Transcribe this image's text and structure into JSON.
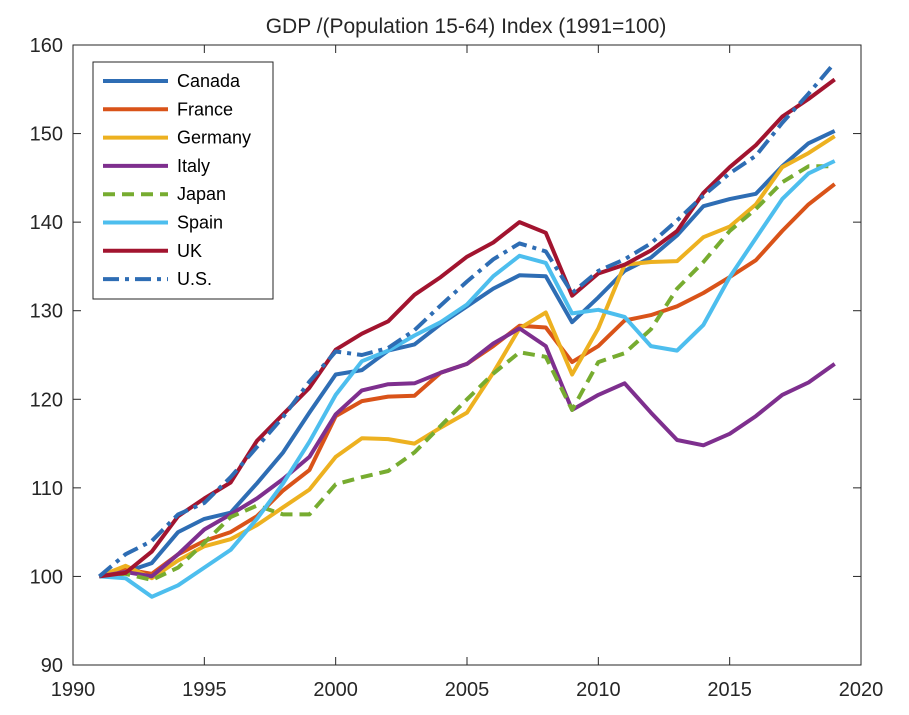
{
  "chart_data": {
    "type": "line",
    "title": "GDP /(Population 15-64) Index  (1991=100)",
    "xlabel": "",
    "ylabel": "",
    "xlim": [
      1990,
      2020
    ],
    "ylim": [
      90,
      160
    ],
    "xticks": [
      1990,
      1995,
      2000,
      2005,
      2010,
      2015,
      2020
    ],
    "yticks": [
      90,
      100,
      110,
      120,
      130,
      140,
      150,
      160
    ],
    "grid": false,
    "legend_position": "top-left",
    "x": [
      1991,
      1992,
      1993,
      1994,
      1995,
      1996,
      1997,
      1998,
      1999,
      2000,
      2001,
      2002,
      2003,
      2004,
      2005,
      2006,
      2007,
      2008,
      2009,
      2010,
      2011,
      2012,
      2013,
      2014,
      2015,
      2016,
      2017,
      2018,
      2019
    ],
    "series": [
      {
        "name": "Canada",
        "color": "#2E6DB4",
        "dash": "solid",
        "values": [
          100,
          100.5,
          101.5,
          105,
          106.5,
          107.2,
          110.5,
          114,
          118.5,
          122.8,
          123.3,
          125.5,
          126.2,
          128.5,
          130.5,
          132.5,
          134,
          133.9,
          128.7,
          131.5,
          134.5,
          136,
          138.5,
          141.8,
          142.6,
          143.2,
          146.3,
          148.9,
          150.3
        ]
      },
      {
        "name": "France",
        "color": "#D95319",
        "dash": "solid",
        "values": [
          100,
          100.8,
          100.3,
          102.5,
          104,
          105,
          106.8,
          109.7,
          112,
          118.1,
          119.8,
          120.3,
          120.4,
          123,
          124,
          126,
          128.3,
          128.1,
          124.2,
          126,
          128.9,
          129.5,
          130.5,
          132,
          133.8,
          135.7,
          139,
          142,
          144.3
        ]
      },
      {
        "name": "Germany",
        "color": "#EDB120",
        "dash": "solid",
        "values": [
          100,
          101.2,
          99.8,
          101.8,
          103.4,
          104.2,
          105.8,
          107.8,
          109.8,
          113.5,
          115.6,
          115.5,
          115,
          116.8,
          118.5,
          123,
          128,
          129.8,
          122.8,
          128,
          135.2,
          135.5,
          135.6,
          138.3,
          139.5,
          142,
          146.2,
          147.8,
          149.7
        ]
      },
      {
        "name": "Italy",
        "color": "#7E2F8E",
        "dash": "solid",
        "values": [
          100,
          100.5,
          100,
          102.5,
          105.3,
          107,
          108.8,
          111,
          113.5,
          118.3,
          121,
          121.7,
          121.8,
          123,
          124,
          126.3,
          128,
          126,
          118.8,
          120.5,
          121.8,
          118.5,
          115.4,
          114.8,
          116.1,
          118.1,
          120.5,
          121.9,
          124
        ]
      },
      {
        "name": "Japan",
        "color": "#77AC30",
        "dash": "dashed",
        "values": [
          100,
          100.3,
          99.6,
          101,
          103.8,
          106.7,
          108,
          107,
          107,
          110.4,
          111.2,
          111.9,
          114,
          117,
          120,
          122.9,
          125.3,
          124.8,
          118.8,
          124.2,
          125.2,
          127.9,
          132.5,
          135.5,
          139,
          141.5,
          144.5,
          146.3,
          146.3
        ]
      },
      {
        "name": "Spain",
        "color": "#4DBEEE",
        "dash": "solid",
        "values": [
          100,
          99.8,
          97.7,
          99,
          101,
          103,
          106.5,
          110.5,
          115.2,
          120.5,
          124.3,
          125.5,
          127.2,
          128.7,
          130.7,
          133.9,
          136.2,
          135.4,
          129.7,
          130.1,
          129.3,
          126,
          125.5,
          128.4,
          133.8,
          138.2,
          142.6,
          145.5,
          146.9
        ]
      },
      {
        "name": "UK",
        "color": "#A2142F",
        "dash": "solid",
        "values": [
          100,
          100.4,
          102.8,
          106.8,
          108.8,
          110.6,
          115.3,
          118.3,
          121.3,
          125.6,
          127.4,
          128.8,
          131.8,
          133.8,
          136.1,
          137.7,
          140,
          138.8,
          131.7,
          134.2,
          135.2,
          136.8,
          139,
          143.3,
          146.2,
          148.7,
          151.9,
          153.9,
          156.1
        ]
      },
      {
        "name": "U.S.",
        "color": "#2E6DB4",
        "dash": "dashdot",
        "values": [
          100,
          102.5,
          104,
          107,
          108.3,
          111.2,
          114.6,
          118,
          122,
          125.4,
          125,
          125.8,
          127.8,
          130.6,
          133.3,
          135.8,
          137.6,
          136.7,
          132,
          134.5,
          135.8,
          137.6,
          140.2,
          143,
          145.5,
          147.5,
          151.2,
          154.5,
          158
        ]
      }
    ]
  }
}
